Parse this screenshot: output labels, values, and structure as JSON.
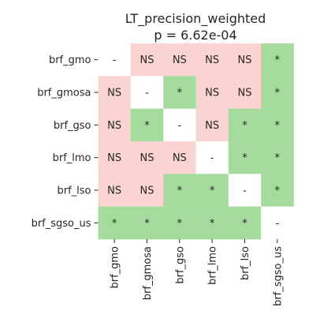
{
  "chart_data": {
    "type": "heatmap",
    "title": "LT_precision_weighted",
    "subtitle": "p = 6.62e-04",
    "rows": [
      "brf_gmo",
      "brf_gmosa",
      "brf_gso",
      "brf_lmo",
      "brf_lso",
      "brf_sgso_us"
    ],
    "columns": [
      "brf_gmo",
      "brf_gmosa",
      "brf_gso",
      "brf_lmo",
      "brf_lso",
      "brf_sgso_us"
    ],
    "cells": [
      [
        "-",
        "NS",
        "NS",
        "NS",
        "NS",
        "*"
      ],
      [
        "NS",
        "-",
        "*",
        "NS",
        "NS",
        "*"
      ],
      [
        "NS",
        "*",
        "-",
        "NS",
        "*",
        "*"
      ],
      [
        "NS",
        "NS",
        "NS",
        "-",
        "*",
        "*"
      ],
      [
        "NS",
        "NS",
        "*",
        "*",
        "-",
        "*"
      ],
      [
        "*",
        "*",
        "*",
        "*",
        "*",
        "-"
      ]
    ],
    "colors": {
      "NS": "#fad4d0",
      "*": "#a5dc9d",
      "-": "#ffffff"
    },
    "legend": "none",
    "grid": false
  }
}
